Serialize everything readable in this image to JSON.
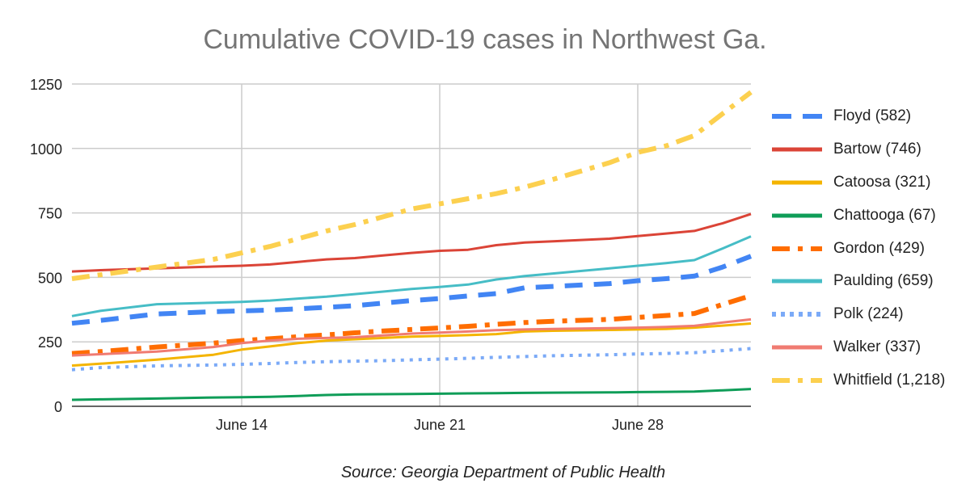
{
  "chart_data": {
    "type": "line",
    "title": "Cumulative COVID-19 cases in Northwest Ga.",
    "source": "Source: Georgia Department of Public Health",
    "xlabel": "",
    "ylabel": "",
    "ylim": [
      0,
      1250
    ],
    "yticks": [
      0,
      250,
      500,
      750,
      1000,
      1250
    ],
    "ytick_labels": [
      "0",
      "250",
      "500",
      "750",
      "1000",
      "1250"
    ],
    "x_range": [
      0,
      24
    ],
    "xticks": [
      {
        "day": 6,
        "label": "June 14"
      },
      {
        "day": 13,
        "label": "June 21"
      },
      {
        "day": 20,
        "label": "June 28"
      }
    ],
    "grid": true,
    "legend_position": "right",
    "x": [
      0,
      1,
      3,
      5,
      6,
      7,
      8,
      9,
      10,
      11,
      12,
      13,
      14,
      15,
      16,
      17,
      19,
      20,
      21,
      22,
      23,
      24
    ],
    "series": [
      {
        "name": "Floyd",
        "legend": "Floyd (582)",
        "color": "#4285f4",
        "style": "dashed",
        "values": [
          322,
          333,
          358,
          367,
          370,
          373,
          378,
          384,
          390,
          400,
          410,
          418,
          428,
          437,
          460,
          465,
          476,
          487,
          495,
          505,
          540,
          582
        ]
      },
      {
        "name": "Bartow",
        "legend": "Bartow (746)",
        "color": "#db4437",
        "style": "solid",
        "values": [
          523,
          528,
          535,
          542,
          545,
          550,
          560,
          570,
          575,
          585,
          595,
          603,
          607,
          625,
          635,
          640,
          650,
          660,
          670,
          680,
          710,
          746
        ]
      },
      {
        "name": "Catoosa",
        "legend": "Catoosa (321)",
        "color": "#f4b400",
        "style": "solid",
        "values": [
          158,
          165,
          181,
          200,
          220,
          232,
          245,
          255,
          260,
          265,
          270,
          273,
          276,
          280,
          290,
          293,
          296,
          298,
          300,
          305,
          313,
          321
        ]
      },
      {
        "name": "Chattooga",
        "legend": "Chattooga (67)",
        "color": "#0f9d58",
        "style": "solid",
        "values": [
          25,
          27,
          30,
          34,
          35,
          37,
          40,
          44,
          46,
          47,
          48,
          49,
          50,
          51,
          52,
          53,
          54,
          55,
          56,
          57,
          62,
          67
        ]
      },
      {
        "name": "Gordon",
        "legend": "Gordon (429)",
        "color": "#ff6d00",
        "style": "dashdot",
        "values": [
          205,
          212,
          230,
          245,
          255,
          262,
          270,
          277,
          285,
          292,
          298,
          304,
          310,
          318,
          325,
          330,
          337,
          345,
          352,
          360,
          395,
          429
        ]
      },
      {
        "name": "Paulding",
        "legend": "Paulding (659)",
        "color": "#46bdc6",
        "style": "solid",
        "values": [
          350,
          370,
          396,
          402,
          405,
          410,
          418,
          425,
          435,
          445,
          455,
          463,
          472,
          492,
          505,
          515,
          535,
          545,
          555,
          567,
          612,
          659
        ]
      },
      {
        "name": "Polk",
        "legend": "Polk (224)",
        "color": "#7baaf7",
        "style": "dotted",
        "values": [
          142,
          150,
          157,
          160,
          163,
          166,
          170,
          173,
          175,
          177,
          180,
          183,
          186,
          190,
          193,
          196,
          200,
          203,
          205,
          208,
          216,
          224
        ]
      },
      {
        "name": "Walker",
        "legend": "Walker (337)",
        "color": "#f07b72",
        "style": "solid",
        "values": [
          197,
          202,
          212,
          230,
          245,
          255,
          262,
          265,
          268,
          275,
          282,
          286,
          290,
          295,
          298,
          300,
          303,
          305,
          308,
          312,
          325,
          337
        ]
      },
      {
        "name": "Whitfield",
        "legend": "Whitfield (1,218)",
        "color": "#fcd04f",
        "style": "dashdot",
        "values": [
          495,
          510,
          540,
          570,
          595,
          620,
          650,
          680,
          705,
          735,
          765,
          785,
          805,
          825,
          850,
          880,
          945,
          985,
          1010,
          1050,
          1135,
          1218
        ]
      }
    ]
  }
}
